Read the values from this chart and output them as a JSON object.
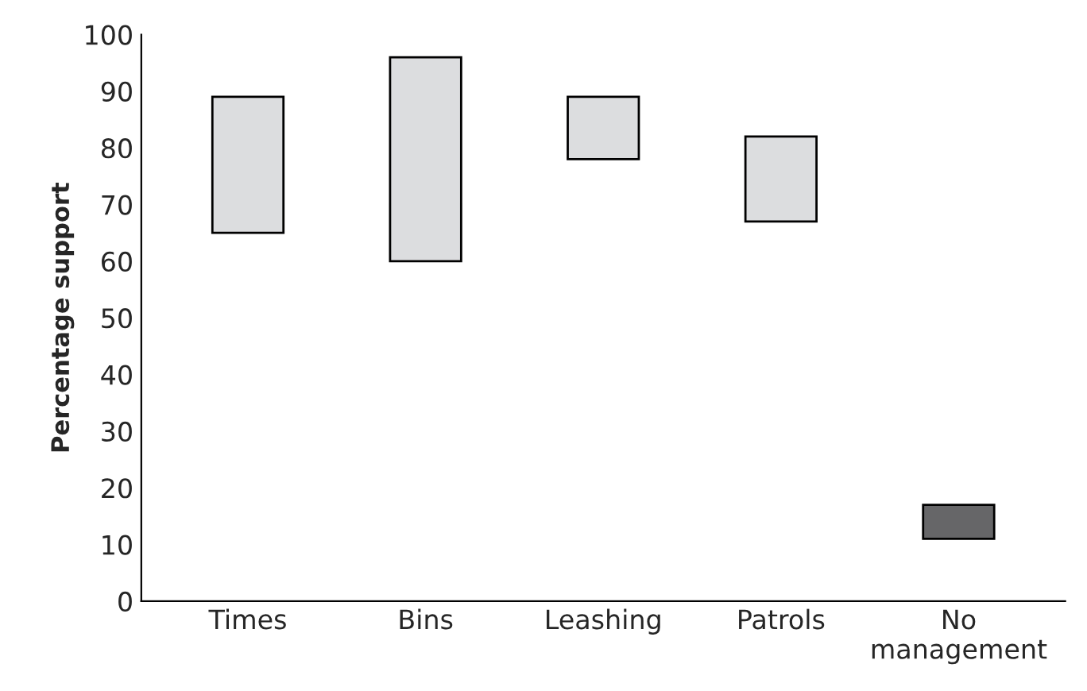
{
  "chart_data": {
    "type": "bar",
    "ylabel": "Percentage support",
    "categories": [
      "Times",
      "Bins",
      "Leashing",
      "Patrols",
      "No\nmanagement"
    ],
    "base": [
      65,
      60,
      78,
      67,
      11
    ],
    "values": [
      24,
      36,
      11,
      15,
      6
    ],
    "colors": [
      "#dcdddf",
      "#dcdddf",
      "#dcdddf",
      "#dcdddf",
      "#666668"
    ],
    "ylim": [
      0,
      100
    ],
    "yticks": [
      0,
      10,
      20,
      30,
      40,
      50,
      60,
      70,
      80,
      90,
      100
    ],
    "grid": false
  }
}
